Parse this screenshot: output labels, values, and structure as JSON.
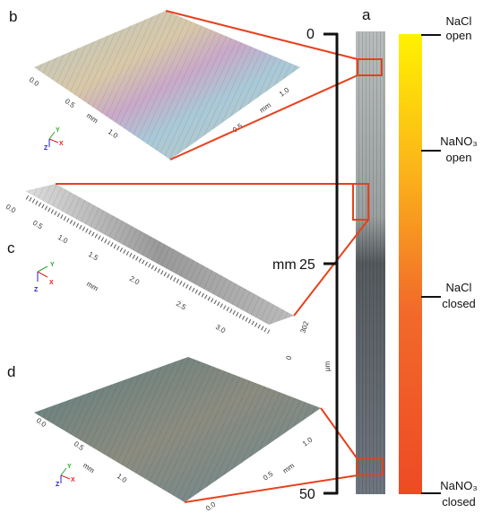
{
  "panels": {
    "b": {
      "label": "b",
      "axis_labels": [
        "0.0",
        "0.5",
        "mm",
        "1.0",
        "1.0",
        "mm",
        "0.5"
      ],
      "triad": [
        "X",
        "Y",
        "Z"
      ]
    },
    "c": {
      "label": "c",
      "axis_labels": [
        "0.0",
        "0.5",
        "1.0",
        "1.5",
        "mm",
        "2.0",
        "2.5",
        "3.0",
        "302",
        "0",
        "μm"
      ],
      "triad": [
        "X",
        "Y",
        "Z"
      ]
    },
    "d": {
      "label": "d",
      "axis_labels": [
        "0.0",
        "0.5",
        "mm",
        "1.0",
        "1.0",
        "mm",
        "0.5",
        "0.0"
      ],
      "triad": [
        "X",
        "Y",
        "Z"
      ]
    },
    "a": {
      "label": "a"
    }
  },
  "scale": {
    "ticks": [
      "0",
      "25",
      "50"
    ],
    "unit": "mm"
  },
  "conditions": [
    [
      "NaCl",
      "open"
    ],
    [
      "NaNO₃",
      "open"
    ],
    [
      "NaCl",
      "closed"
    ],
    [
      "NaNO₃",
      "closed"
    ]
  ]
}
